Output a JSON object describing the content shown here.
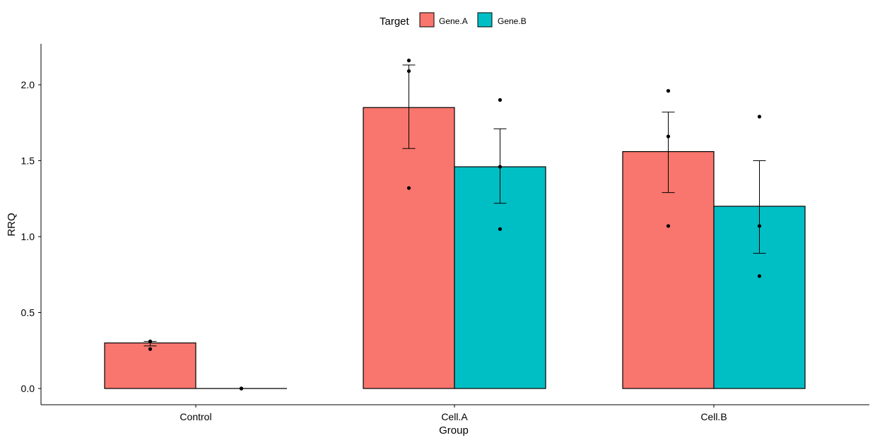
{
  "chart_data": {
    "type": "bar",
    "title": "",
    "xlabel": "Group",
    "ylabel": "RRQ",
    "ylim": [
      -0.05,
      2.26
    ],
    "yticks": [
      0.0,
      0.5,
      1.0,
      1.5,
      2.0
    ],
    "ytick_labels": [
      "0.0",
      "0.5",
      "1.0",
      "1.5",
      "2.0"
    ],
    "categories": [
      "Control",
      "Cell.A",
      "Cell.B"
    ],
    "legend": {
      "title": "Target",
      "placement": "top"
    },
    "grid": false,
    "series": [
      {
        "name": "Gene.A",
        "color": "#F8766D",
        "values": [
          0.3,
          1.85,
          1.56
        ],
        "error_low": [
          0.28,
          1.58,
          1.29
        ],
        "error_high": [
          0.31,
          2.13,
          1.82
        ],
        "points": [
          [
            0.31,
            0.31,
            0.26
          ],
          [
            2.16,
            2.09,
            1.32
          ],
          [
            1.96,
            1.66,
            1.07
          ]
        ]
      },
      {
        "name": "Gene.B",
        "color": "#00BFC4",
        "values": [
          0.0,
          1.46,
          1.2
        ],
        "error_low": [
          0.0,
          1.22,
          0.89
        ],
        "error_high": [
          0.0,
          1.71,
          1.5
        ],
        "points": [
          [
            0.0,
            0.0,
            0.0
          ],
          [
            1.9,
            1.46,
            1.05
          ],
          [
            1.79,
            1.07,
            0.74
          ]
        ]
      }
    ]
  }
}
